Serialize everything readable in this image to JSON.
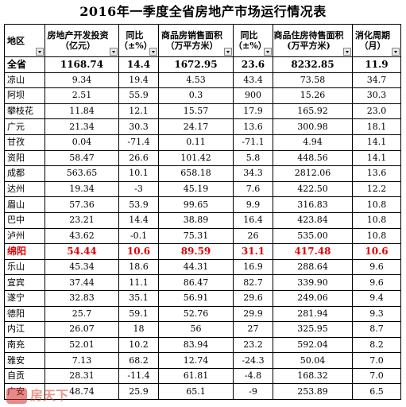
{
  "title": "2016年一季度全省房地产市场运行情况表",
  "headers": [
    "地区",
    "房地产开发投资（亿元）",
    "同比（±%）",
    "商品房销售面积（万平方米）",
    "同比（±%）",
    "商品住房待售面积(万平方米)",
    "消化周期（月）"
  ],
  "rows": [
    {
      "name": "全省",
      "c1": "1168.74",
      "c2": "14.4",
      "c3": "1672.95",
      "c4": "23.6",
      "c5": "8232.85",
      "c6": "11.9"
    },
    {
      "name": "凉山",
      "c1": "9.34",
      "c2": "19.4",
      "c3": "4.53",
      "c4": "43.4",
      "c5": "73.58",
      "c6": "34.7"
    },
    {
      "name": "阿坝",
      "c1": "2.51",
      "c2": "55.9",
      "c3": "0.3",
      "c4": "900",
      "c5": "15.26",
      "c6": "30.3"
    },
    {
      "name": "攀枝花",
      "c1": "11.84",
      "c2": "12.1",
      "c3": "15.57",
      "c4": "17.9",
      "c5": "165.92",
      "c6": "23.0"
    },
    {
      "name": "广元",
      "c1": "21.34",
      "c2": "30.3",
      "c3": "24.17",
      "c4": "13.6",
      "c5": "300.98",
      "c6": "18.1"
    },
    {
      "name": "甘孜",
      "c1": "0.04",
      "c2": "-71.4",
      "c3": "0.11",
      "c4": "-71.1",
      "c5": "4.94",
      "c6": "14.1"
    },
    {
      "name": "资阳",
      "c1": "58.47",
      "c2": "26.6",
      "c3": "101.42",
      "c4": "5.8",
      "c5": "448.56",
      "c6": "14.1"
    },
    {
      "name": "成都",
      "c1": "563.65",
      "c2": "10.1",
      "c3": "658.18",
      "c4": "34.3",
      "c5": "2812.06",
      "c6": "13.6"
    },
    {
      "name": "达州",
      "c1": "19.34",
      "c2": "-3",
      "c3": "45.19",
      "c4": "7.6",
      "c5": "422.50",
      "c6": "12.2"
    },
    {
      "name": "眉山",
      "c1": "57.36",
      "c2": "53.9",
      "c3": "99.65",
      "c4": "9.9",
      "c5": "316.83",
      "c6": "10.8"
    },
    {
      "name": "巴中",
      "c1": "23.21",
      "c2": "14.4",
      "c3": "38.89",
      "c4": "16.4",
      "c5": "423.84",
      "c6": "10.8"
    },
    {
      "name": "泸州",
      "c1": "43.62",
      "c2": "-0.1",
      "c3": "75.31",
      "c4": "26",
      "c5": "535.00",
      "c6": "10.8"
    },
    {
      "name": "绵阳",
      "c1": "54.44",
      "c2": "10.6",
      "c3": "89.59",
      "c4": "31.1",
      "c5": "417.48",
      "c6": "10.6"
    },
    {
      "name": "乐山",
      "c1": "45.34",
      "c2": "18.6",
      "c3": "44.31",
      "c4": "16.9",
      "c5": "288.64",
      "c6": "9.6"
    },
    {
      "name": "宜宾",
      "c1": "37.44",
      "c2": "11.1",
      "c3": "86.47",
      "c4": "82.7",
      "c5": "339.90",
      "c6": "9.6"
    },
    {
      "name": "遂宁",
      "c1": "32.83",
      "c2": "35.1",
      "c3": "56.91",
      "c4": "29.6",
      "c5": "249.06",
      "c6": "9.4"
    },
    {
      "name": "德阳",
      "c1": "25.7",
      "c2": "59.1",
      "c3": "52.76",
      "c4": "29.9",
      "c5": "281.94",
      "c6": "9.3"
    },
    {
      "name": "内江",
      "c1": "26.07",
      "c2": "18",
      "c3": "56",
      "c4": "27",
      "c5": "325.95",
      "c6": "8.7"
    },
    {
      "name": "南充",
      "c1": "52.01",
      "c2": "10.2",
      "c3": "83.94",
      "c4": "23.2",
      "c5": "592.04",
      "c6": "8.2"
    },
    {
      "name": "雅安",
      "c1": "7.13",
      "c2": "68.2",
      "c3": "12.74",
      "c4": "-24.3",
      "c5": "50.04",
      "c6": "7.0"
    },
    {
      "name": "自贡",
      "c1": "28.31",
      "c2": "-11.4",
      "c3": "61.81",
      "c4": "-4.8",
      "c5": "168.32",
      "c6": "7.0"
    },
    {
      "name": "广安",
      "c1": "48.74",
      "c2": "25.9",
      "c3": "65.1",
      "c4": "-9",
      "c5": "253.89",
      "c6": "6.5"
    }
  ],
  "highlight_row": "绵阳",
  "colors": {
    "highlight": "#e00000",
    "border": "#000000",
    "background": "#ffffff"
  },
  "watermark": "房天下"
}
